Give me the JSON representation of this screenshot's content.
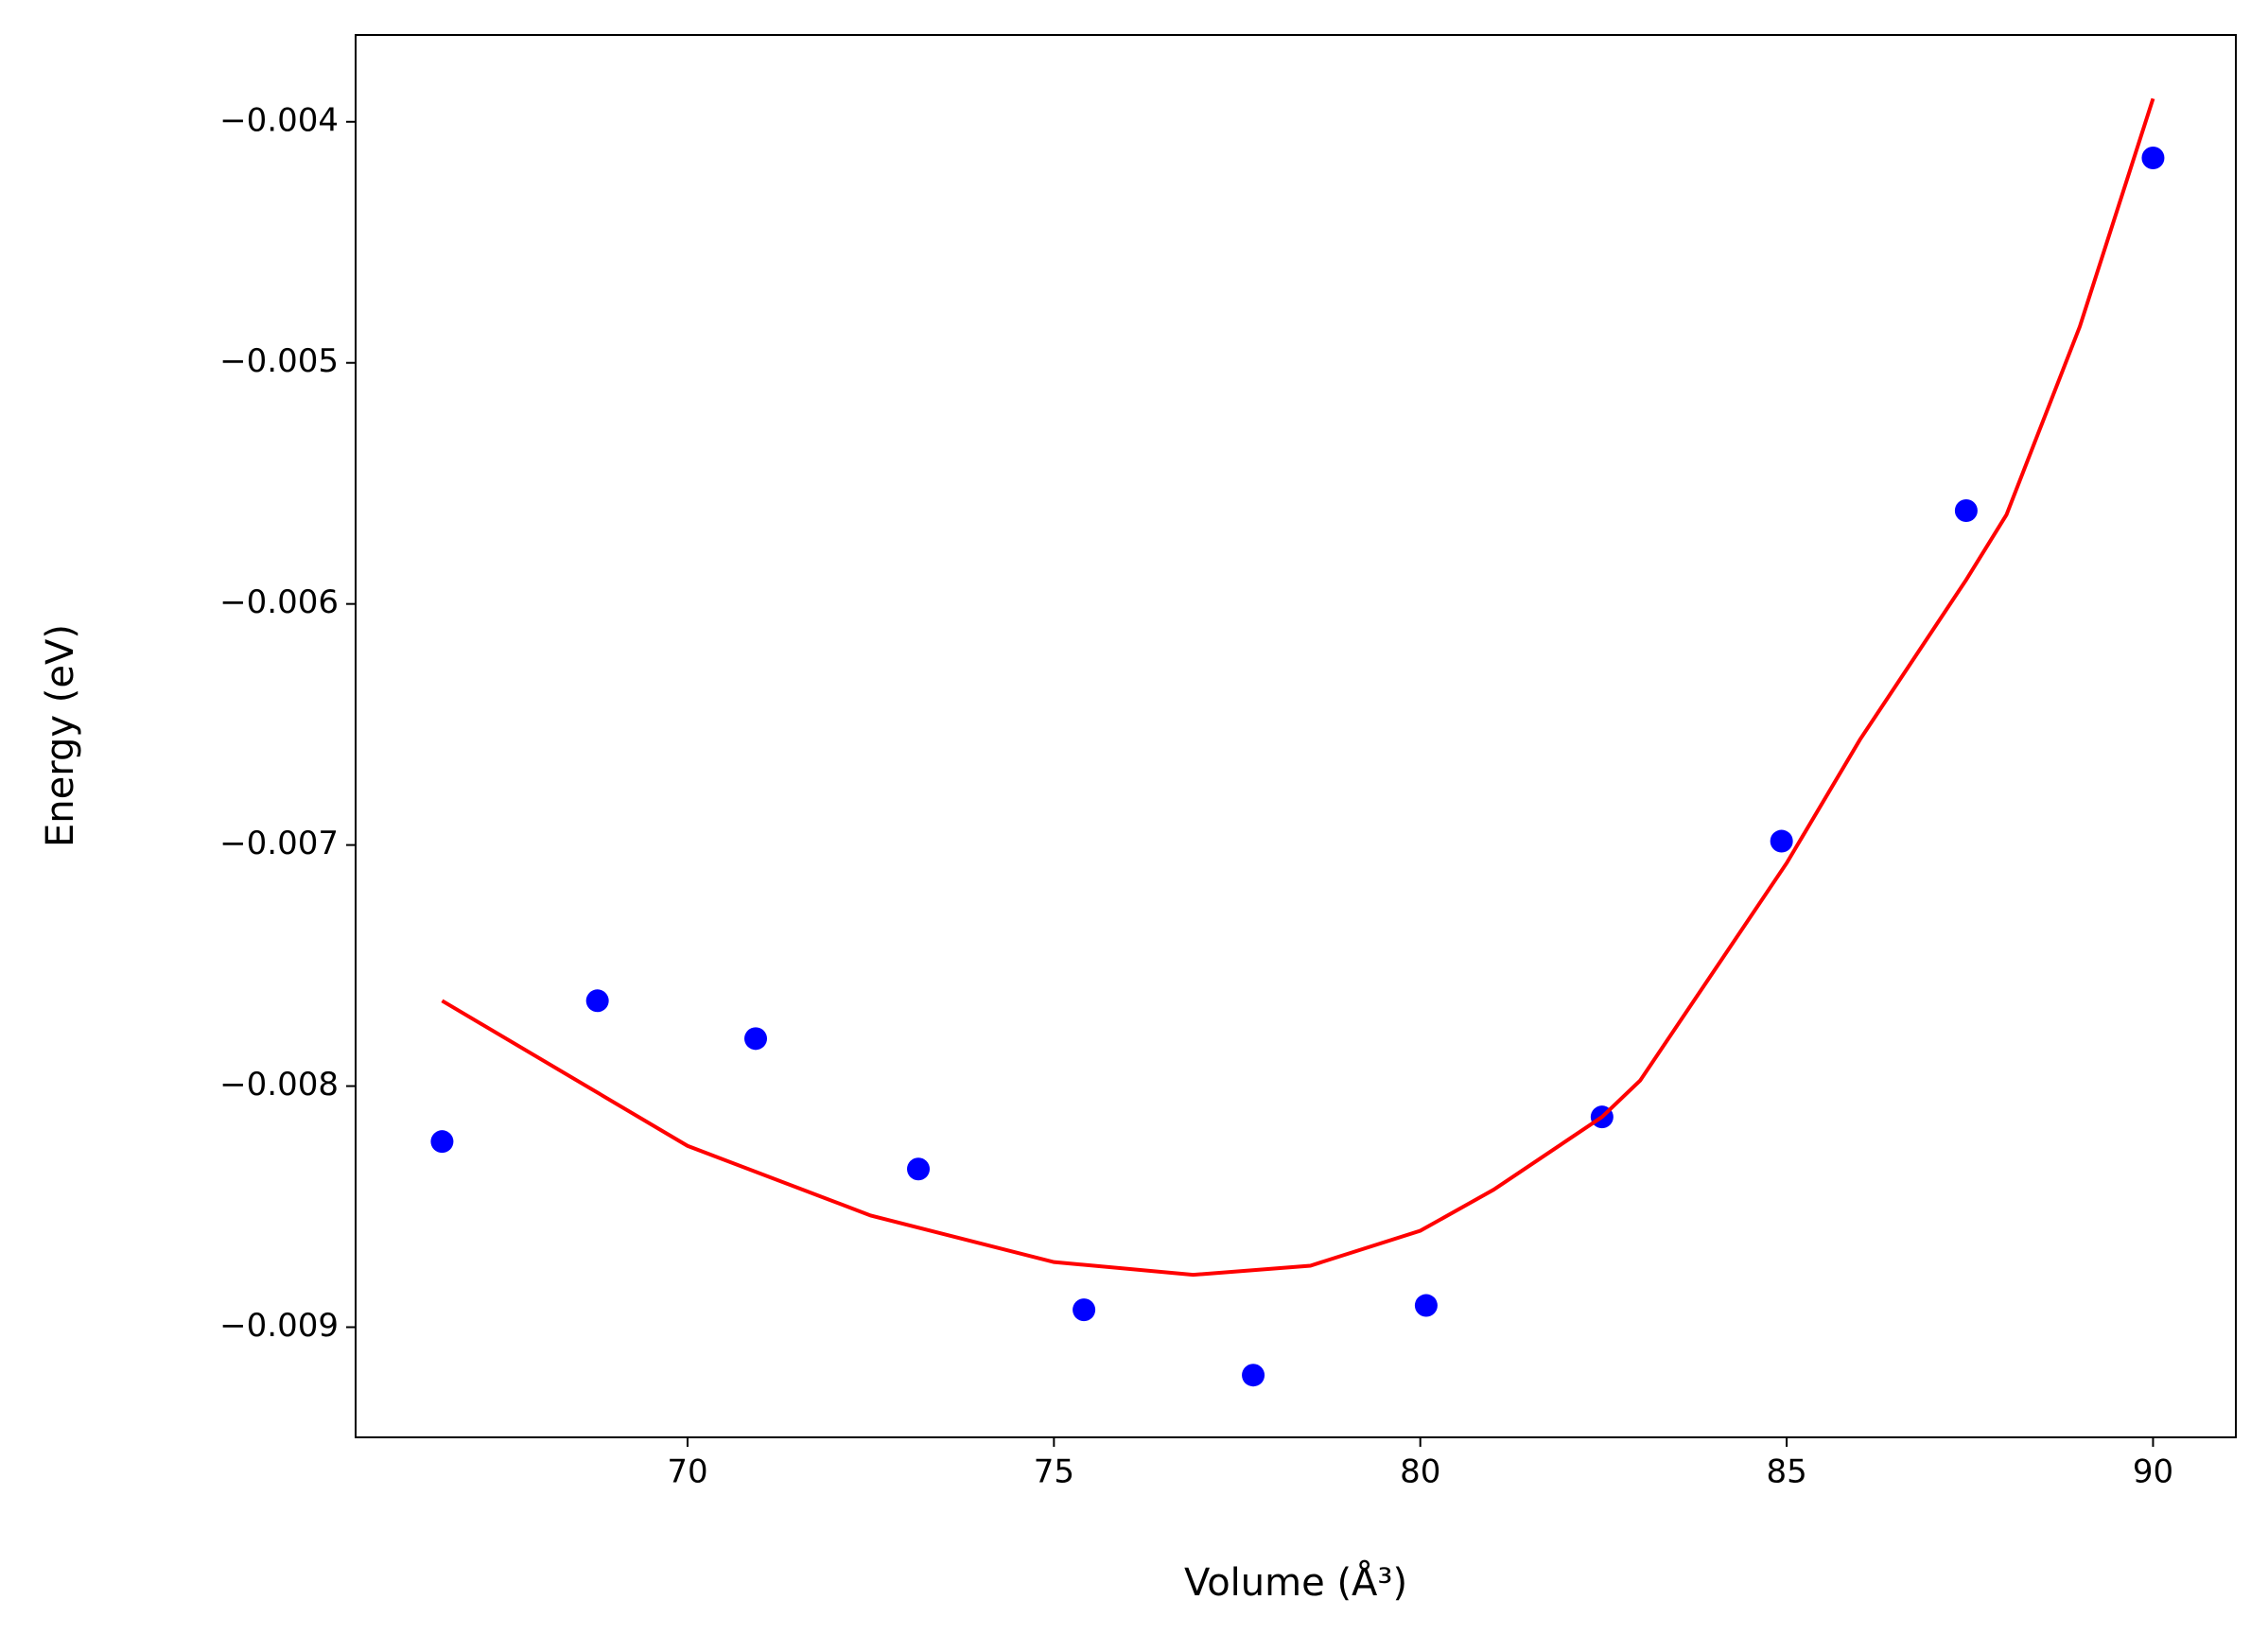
{
  "chart_data": {
    "type": "scatter",
    "x_label": "Volume (Å³)",
    "y_label": "Energy (eV)",
    "xlim": [
      65.47,
      91.13
    ],
    "ylim": [
      -0.009457,
      -0.00364
    ],
    "xticks": [
      70,
      75,
      80,
      85,
      90
    ],
    "yticks": [
      {
        "value": -0.009,
        "label": "−0.009"
      },
      {
        "value": -0.008,
        "label": "−0.008"
      },
      {
        "value": -0.007,
        "label": "−0.007"
      },
      {
        "value": -0.006,
        "label": "−0.006"
      },
      {
        "value": -0.005,
        "label": "−0.005"
      },
      {
        "value": -0.004,
        "label": "−0.004"
      }
    ],
    "grid": false,
    "series": [
      {
        "style": "points",
        "color": "#0000ff",
        "x": [
          66.65,
          68.77,
          70.93,
          73.15,
          75.41,
          77.72,
          80.08,
          82.48,
          84.93,
          87.45,
          90.0
        ],
        "values": [
          -0.00823,
          -0.007646,
          -0.007803,
          -0.008344,
          -0.008928,
          -0.009199,
          -0.00891,
          -0.008128,
          -0.006984,
          -0.005613,
          -0.00415
        ]
      },
      {
        "style": "line",
        "color": "#ff0000",
        "x": [
          66.65,
          70,
          72.5,
          75,
          76.9,
          78.5,
          80,
          81,
          82.48,
          83,
          85,
          86,
          87.45,
          88,
          89,
          90
        ],
        "values": [
          -0.007646,
          -0.008248,
          -0.008537,
          -0.00873,
          -0.008783,
          -0.008745,
          -0.0086,
          -0.00843,
          -0.008128,
          -0.007977,
          -0.007075,
          -0.006563,
          -0.0059,
          -0.00563,
          -0.00485,
          -0.003904
        ]
      }
    ]
  }
}
